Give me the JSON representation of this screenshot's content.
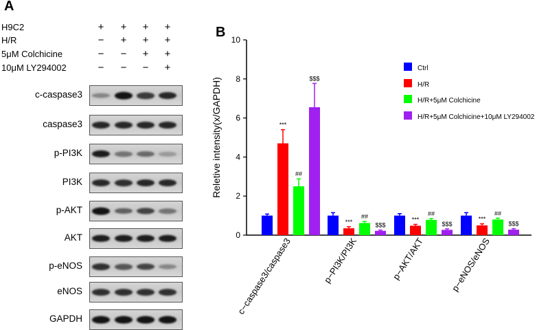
{
  "panels": {
    "a": "A",
    "b": "B"
  },
  "treatments": [
    {
      "label": "H9C2",
      "signs": [
        "+",
        "+",
        "+",
        "+"
      ]
    },
    {
      "label": "H/R",
      "signs": [
        "−",
        "+",
        "+",
        "+"
      ]
    },
    {
      "label": "5μM Colchicine",
      "signs": [
        "−",
        "−",
        "+",
        "+"
      ]
    },
    {
      "label": "10μM LY294002",
      "signs": [
        "−",
        "−",
        "−",
        "+"
      ]
    }
  ],
  "blots": [
    {
      "label": "c-caspase3",
      "intensity": [
        0.35,
        0.95,
        0.75,
        0.85
      ]
    },
    {
      "label": "caspase3",
      "intensity": [
        0.85,
        0.85,
        0.85,
        0.85
      ]
    },
    {
      "label": "p-PI3K",
      "intensity": [
        0.9,
        0.45,
        0.5,
        0.25
      ]
    },
    {
      "label": "PI3K",
      "intensity": [
        0.85,
        0.8,
        0.85,
        0.85
      ]
    },
    {
      "label": "p-AKT",
      "intensity": [
        0.95,
        0.55,
        0.7,
        0.45
      ]
    },
    {
      "label": "AKT",
      "intensity": [
        0.9,
        0.9,
        0.9,
        0.9
      ]
    },
    {
      "label": "p-eNOS",
      "intensity": [
        0.8,
        0.6,
        0.7,
        0.35
      ]
    },
    {
      "label": "eNOS",
      "intensity": [
        0.8,
        0.8,
        0.8,
        0.8
      ]
    },
    {
      "label": "GAPDH",
      "intensity": [
        0.95,
        0.95,
        0.95,
        0.95
      ]
    }
  ],
  "chart_data": {
    "type": "bar",
    "ylabel": "Reletive intensity(x/GAPDH)",
    "ylim": [
      0,
      10
    ],
    "yticks": [
      0,
      2,
      4,
      6,
      8,
      10
    ],
    "categories": [
      "c−caspase3/caspase3",
      "p−PI3K/PI3K",
      "p−AKT/AKT",
      "p−eNOS/eNOS"
    ],
    "series": [
      {
        "name": "Ctrl",
        "color": "#0000ff",
        "values": [
          1.0,
          1.0,
          1.0,
          1.0
        ],
        "errors": [
          0.08,
          0.15,
          0.1,
          0.15
        ],
        "marks": [
          "",
          "",
          "",
          ""
        ]
      },
      {
        "name": "H/R",
        "color": "#ff0000",
        "values": [
          4.7,
          0.35,
          0.48,
          0.5
        ],
        "errors": [
          0.7,
          0.08,
          0.07,
          0.08
        ],
        "marks": [
          "***",
          "***",
          "***",
          "***"
        ]
      },
      {
        "name": "H/R+5μM Colchicine",
        "color": "#00ff00",
        "values": [
          2.5,
          0.62,
          0.78,
          0.8
        ],
        "errors": [
          0.38,
          0.08,
          0.07,
          0.07
        ],
        "marks": [
          "##",
          "##",
          "##",
          "##"
        ]
      },
      {
        "name": "H/R+5μM Colchicine+10μM LY294002",
        "color": "#a020f0",
        "values": [
          6.55,
          0.22,
          0.27,
          0.28
        ],
        "errors": [
          1.22,
          0.04,
          0.05,
          0.05
        ],
        "marks": [
          "$$$",
          "$$$",
          "$$$",
          "$$$"
        ]
      }
    ],
    "legend": "top-right",
    "grid": false
  }
}
